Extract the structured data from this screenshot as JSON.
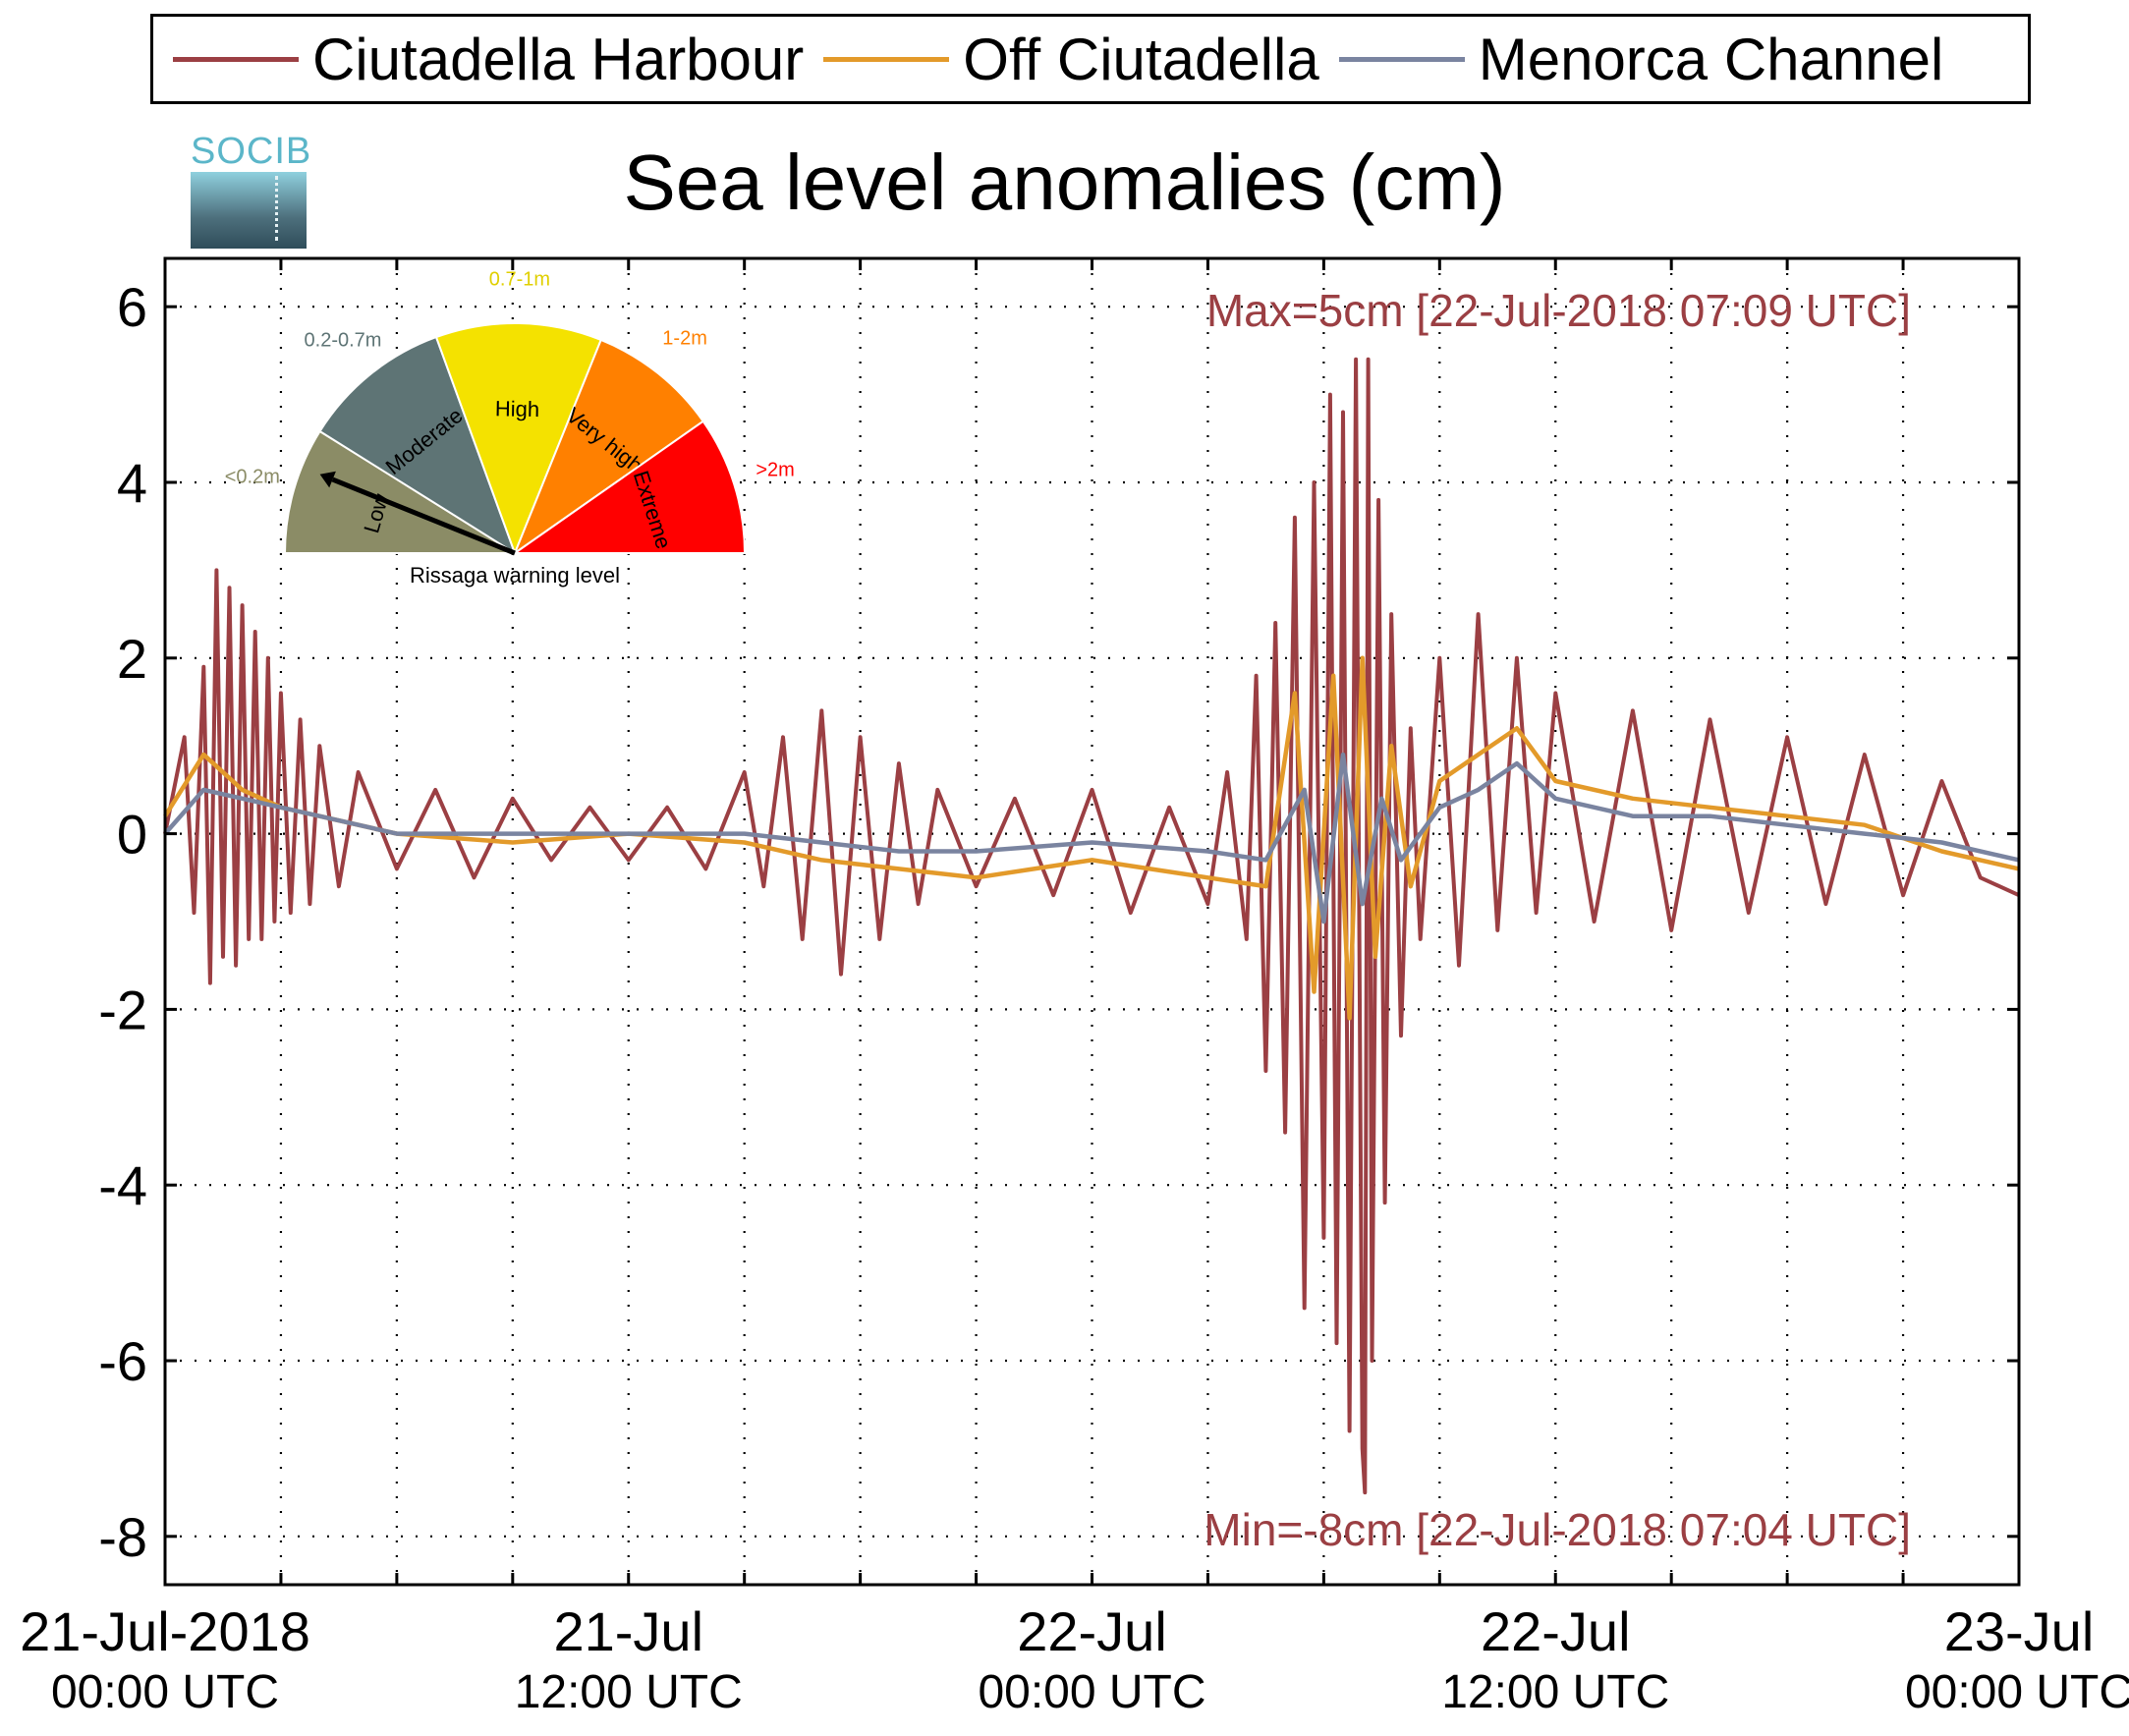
{
  "title": "Sea level anomalies (cm)",
  "logo_text": "SOCIB",
  "legend": [
    {
      "name": "Ciutadella Harbour",
      "color": "#9b3f43"
    },
    {
      "name": "Off Ciutadella",
      "color": "#e39a2a"
    },
    {
      "name": "Menorca Channel",
      "color": "#7a84a0"
    }
  ],
  "annotations": {
    "max": "Max=5cm [22-Jul-2018 07:09 UTC]",
    "min": "Min=-8cm [22-Jul-2018 07:04 UTC]",
    "color": "#9b3f43"
  },
  "gauge": {
    "caption": "Rissaga warning level",
    "segments": [
      {
        "name": "Low",
        "range": "<0.2m",
        "color": "#8b8c66",
        "range_color": "#8b8c66"
      },
      {
        "name": "Moderate",
        "range": "0.2-0.7m",
        "color": "#5e7475",
        "range_color": "#5e7475"
      },
      {
        "name": "High",
        "range": "0.7-1m",
        "color": "#f4e200",
        "range_color": "#e0cf00"
      },
      {
        "name": "Very high",
        "range": "1-2m",
        "color": "#ff8000",
        "range_color": "#ff8000"
      },
      {
        "name": "Extreme",
        "range": ">2m",
        "color": "#ff0000",
        "range_color": "#ff0000"
      }
    ],
    "needle_level": "Low"
  },
  "chart_data": {
    "type": "line",
    "title": "Sea level anomalies (cm)",
    "xlabel": "",
    "ylabel": "",
    "ylim": [
      -8.55,
      6.55
    ],
    "xlim": [
      "2018-07-21 00:00",
      "2018-07-23 00:00"
    ],
    "grid": true,
    "legend_position": "top",
    "yticks": [
      6,
      4,
      2,
      0,
      -2,
      -4,
      -6,
      -8
    ],
    "xticks": [
      {
        "x": "2018-07-21 00:00",
        "line1": "21-Jul-2018",
        "line2": "00:00 UTC"
      },
      {
        "x": "2018-07-21 12:00",
        "line1": "21-Jul",
        "line2": "12:00 UTC"
      },
      {
        "x": "2018-07-22 00:00",
        "line1": "22-Jul",
        "line2": "00:00 UTC"
      },
      {
        "x": "2018-07-22 12:00",
        "line1": "22-Jul",
        "line2": "12:00 UTC"
      },
      {
        "x": "2018-07-23 00:00",
        "line1": "23-Jul",
        "line2": "00:00 UTC"
      }
    ],
    "minor_xticks": [
      "2018-07-21 03:00",
      "2018-07-21 06:00",
      "2018-07-21 09:00",
      "2018-07-21 15:00",
      "2018-07-21 18:00",
      "2018-07-21 21:00",
      "2018-07-22 03:00",
      "2018-07-22 06:00",
      "2018-07-22 09:00",
      "2018-07-22 15:00",
      "2018-07-22 18:00",
      "2018-07-22 21:00"
    ],
    "series": [
      {
        "name": "Ciutadella Harbour",
        "color": "#9b3f43",
        "x": [
          "2018-07-21 00:00",
          "2018-07-21 00:30",
          "2018-07-21 00:45",
          "2018-07-21 01:00",
          "2018-07-21 01:10",
          "2018-07-21 01:20",
          "2018-07-21 01:30",
          "2018-07-21 01:40",
          "2018-07-21 01:50",
          "2018-07-21 02:00",
          "2018-07-21 02:10",
          "2018-07-21 02:20",
          "2018-07-21 02:30",
          "2018-07-21 02:40",
          "2018-07-21 02:50",
          "2018-07-21 03:00",
          "2018-07-21 03:15",
          "2018-07-21 03:30",
          "2018-07-21 03:45",
          "2018-07-21 04:00",
          "2018-07-21 04:30",
          "2018-07-21 05:00",
          "2018-07-21 06:00",
          "2018-07-21 07:00",
          "2018-07-21 08:00",
          "2018-07-21 09:00",
          "2018-07-21 10:00",
          "2018-07-21 11:00",
          "2018-07-21 12:00",
          "2018-07-21 13:00",
          "2018-07-21 14:00",
          "2018-07-21 15:00",
          "2018-07-21 15:30",
          "2018-07-21 16:00",
          "2018-07-21 16:30",
          "2018-07-21 17:00",
          "2018-07-21 17:30",
          "2018-07-21 18:00",
          "2018-07-21 18:30",
          "2018-07-21 19:00",
          "2018-07-21 19:30",
          "2018-07-21 20:00",
          "2018-07-21 21:00",
          "2018-07-21 22:00",
          "2018-07-21 23:00",
          "2018-07-22 00:00",
          "2018-07-22 01:00",
          "2018-07-22 02:00",
          "2018-07-22 03:00",
          "2018-07-22 03:30",
          "2018-07-22 04:00",
          "2018-07-22 04:15",
          "2018-07-22 04:30",
          "2018-07-22 04:45",
          "2018-07-22 05:00",
          "2018-07-22 05:15",
          "2018-07-22 05:30",
          "2018-07-22 05:45",
          "2018-07-22 06:00",
          "2018-07-22 06:10",
          "2018-07-22 06:20",
          "2018-07-22 06:30",
          "2018-07-22 06:40",
          "2018-07-22 06:50",
          "2018-07-22 07:00",
          "2018-07-22 07:04",
          "2018-07-22 07:09",
          "2018-07-22 07:15",
          "2018-07-22 07:25",
          "2018-07-22 07:35",
          "2018-07-22 07:45",
          "2018-07-22 08:00",
          "2018-07-22 08:15",
          "2018-07-22 08:30",
          "2018-07-22 09:00",
          "2018-07-22 09:30",
          "2018-07-22 10:00",
          "2018-07-22 10:30",
          "2018-07-22 11:00",
          "2018-07-22 11:30",
          "2018-07-22 12:00",
          "2018-07-22 13:00",
          "2018-07-22 14:00",
          "2018-07-22 15:00",
          "2018-07-22 16:00",
          "2018-07-22 17:00",
          "2018-07-22 18:00",
          "2018-07-22 19:00",
          "2018-07-22 20:00",
          "2018-07-22 21:00",
          "2018-07-22 22:00",
          "2018-07-22 23:00",
          "2018-07-23 00:00"
        ],
        "values": [
          0.0,
          1.1,
          -0.9,
          1.9,
          -1.7,
          3.0,
          -1.4,
          2.8,
          -1.5,
          2.6,
          -1.2,
          2.3,
          -1.2,
          2.0,
          -1.0,
          1.6,
          -0.9,
          1.3,
          -0.8,
          1.0,
          -0.6,
          0.7,
          -0.4,
          0.5,
          -0.5,
          0.4,
          -0.3,
          0.3,
          -0.3,
          0.3,
          -0.4,
          0.7,
          -0.6,
          1.1,
          -1.2,
          1.4,
          -1.6,
          1.1,
          -1.2,
          0.8,
          -0.8,
          0.5,
          -0.6,
          0.4,
          -0.7,
          0.5,
          -0.9,
          0.3,
          -0.8,
          0.7,
          -1.2,
          1.8,
          -2.7,
          2.4,
          -3.4,
          3.6,
          -5.4,
          4.0,
          -4.6,
          5.0,
          -5.8,
          4.8,
          -6.8,
          5.4,
          -7.0,
          -7.5,
          5.4,
          -6.0,
          3.8,
          -4.2,
          2.5,
          -2.3,
          1.2,
          -1.2,
          2.0,
          -1.5,
          2.5,
          -1.1,
          2.0,
          -0.9,
          1.6,
          -1.0,
          1.4,
          -1.1,
          1.3,
          -0.9,
          1.1,
          -0.8,
          0.9,
          -0.7,
          0.6,
          -0.5,
          -0.7
        ]
      },
      {
        "name": "Off Ciutadella",
        "color": "#e39a2a",
        "x": [
          "2018-07-21 00:00",
          "2018-07-21 01:00",
          "2018-07-21 02:00",
          "2018-07-21 03:00",
          "2018-07-21 04:00",
          "2018-07-21 06:00",
          "2018-07-21 09:00",
          "2018-07-21 12:00",
          "2018-07-21 15:00",
          "2018-07-21 17:00",
          "2018-07-21 19:00",
          "2018-07-21 21:00",
          "2018-07-22 00:00",
          "2018-07-22 03:00",
          "2018-07-22 04:30",
          "2018-07-22 05:15",
          "2018-07-22 05:45",
          "2018-07-22 06:15",
          "2018-07-22 06:40",
          "2018-07-22 07:00",
          "2018-07-22 07:20",
          "2018-07-22 07:45",
          "2018-07-22 08:15",
          "2018-07-22 09:00",
          "2018-07-22 10:00",
          "2018-07-22 11:00",
          "2018-07-22 12:00",
          "2018-07-22 14:00",
          "2018-07-22 16:00",
          "2018-07-22 18:00",
          "2018-07-22 20:00",
          "2018-07-22 22:00",
          "2018-07-23 00:00"
        ],
        "values": [
          0.2,
          0.9,
          0.5,
          0.3,
          0.2,
          0.0,
          -0.1,
          0.0,
          -0.1,
          -0.3,
          -0.4,
          -0.5,
          -0.3,
          -0.5,
          -0.6,
          1.6,
          -1.8,
          1.8,
          -2.1,
          2.0,
          -1.4,
          1.0,
          -0.6,
          0.6,
          0.9,
          1.2,
          0.6,
          0.4,
          0.3,
          0.2,
          0.1,
          -0.2,
          -0.4
        ]
      },
      {
        "name": "Menorca Channel",
        "color": "#7a84a0",
        "x": [
          "2018-07-21 00:00",
          "2018-07-21 01:00",
          "2018-07-21 02:00",
          "2018-07-21 03:00",
          "2018-07-21 04:00",
          "2018-07-21 06:00",
          "2018-07-21 09:00",
          "2018-07-21 12:00",
          "2018-07-21 15:00",
          "2018-07-21 17:00",
          "2018-07-21 19:00",
          "2018-07-21 21:00",
          "2018-07-22 00:00",
          "2018-07-22 03:00",
          "2018-07-22 04:30",
          "2018-07-22 05:30",
          "2018-07-22 06:00",
          "2018-07-22 06:30",
          "2018-07-22 07:00",
          "2018-07-22 07:30",
          "2018-07-22 08:00",
          "2018-07-22 09:00",
          "2018-07-22 10:00",
          "2018-07-22 11:00",
          "2018-07-22 12:00",
          "2018-07-22 14:00",
          "2018-07-22 16:00",
          "2018-07-22 18:00",
          "2018-07-22 20:00",
          "2018-07-22 22:00",
          "2018-07-23 00:00"
        ],
        "values": [
          0.0,
          0.5,
          0.4,
          0.3,
          0.2,
          0.0,
          0.0,
          0.0,
          0.0,
          -0.1,
          -0.2,
          -0.2,
          -0.1,
          -0.2,
          -0.3,
          0.5,
          -1.0,
          0.9,
          -0.8,
          0.4,
          -0.3,
          0.3,
          0.5,
          0.8,
          0.4,
          0.2,
          0.2,
          0.1,
          0.0,
          -0.1,
          -0.3
        ]
      }
    ]
  }
}
